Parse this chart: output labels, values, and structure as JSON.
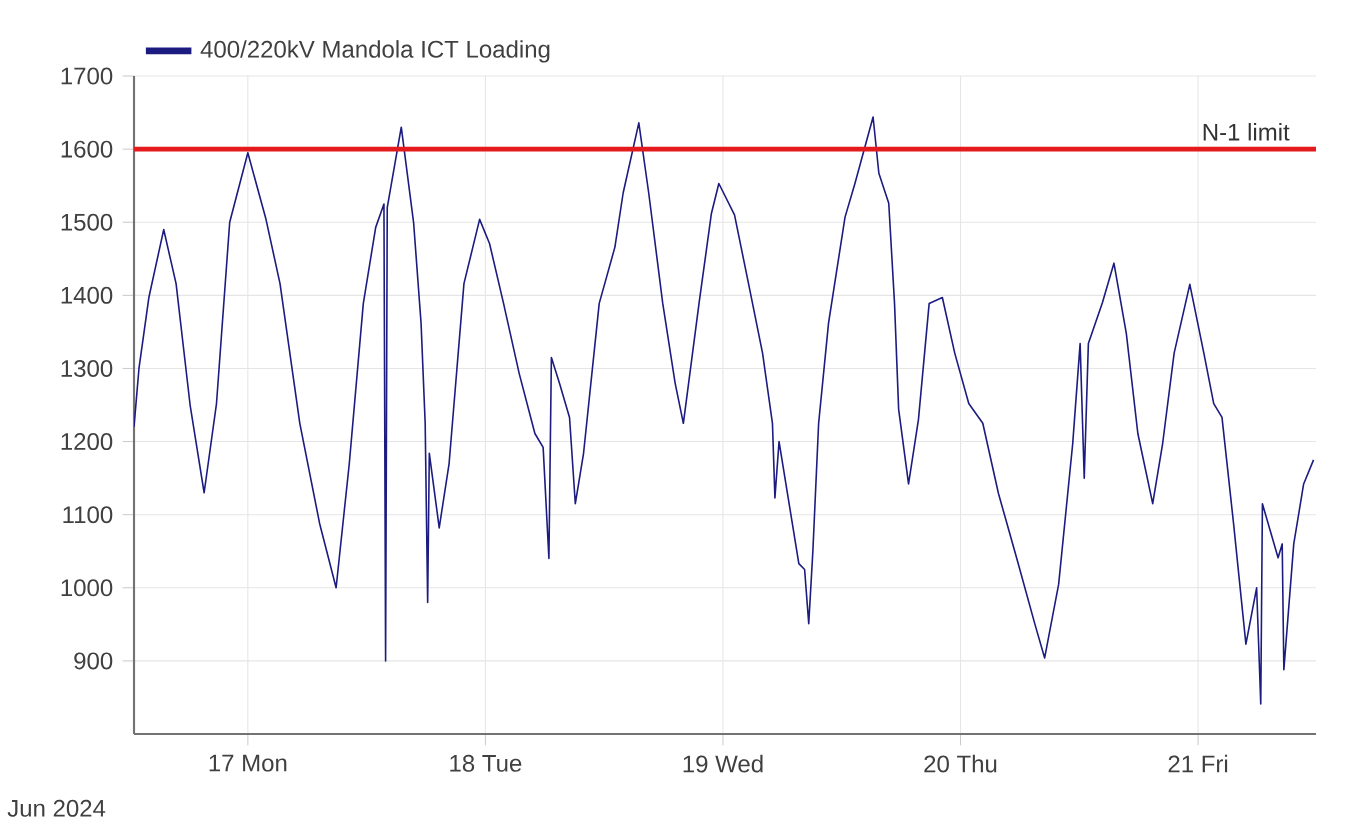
{
  "chart_data": {
    "type": "line",
    "x": [
      "2024-06-16T12:30",
      "2024-06-16T13:00",
      "2024-06-16T14:00",
      "2024-06-16T15:30",
      "2024-06-16T16:45",
      "2024-06-16T18:10",
      "2024-06-16T19:35",
      "2024-06-16T20:50",
      "2024-06-16T22:10",
      "2024-06-17T00:00",
      "2024-06-17T01:50",
      "2024-06-17T03:15",
      "2024-06-17T05:15",
      "2024-06-17T07:15",
      "2024-06-17T08:55",
      "2024-06-17T10:15",
      "2024-06-17T11:40",
      "2024-06-17T12:55",
      "2024-06-17T13:45",
      "2024-06-17T13:55",
      "2024-06-17T14:05",
      "2024-06-17T15:30",
      "2024-06-17T16:45",
      "2024-06-17T17:30",
      "2024-06-17T17:55",
      "2024-06-17T18:10",
      "2024-06-17T18:20",
      "2024-06-17T19:20",
      "2024-06-17T20:20",
      "2024-06-17T21:50",
      "2024-06-17T23:25",
      "2024-06-18T00:25",
      "2024-06-18T01:50",
      "2024-06-18T03:25",
      "2024-06-18T05:00",
      "2024-06-18T05:50",
      "2024-06-18T06:25",
      "2024-06-18T06:40",
      "2024-06-18T07:30",
      "2024-06-18T08:30",
      "2024-06-18T09:05",
      "2024-06-18T09:55",
      "2024-06-18T11:30",
      "2024-06-18T13:05",
      "2024-06-18T13:55",
      "2024-06-18T15:30",
      "2024-06-18T16:30",
      "2024-06-18T17:55",
      "2024-06-18T19:10",
      "2024-06-18T20:00",
      "2024-06-18T21:35",
      "2024-06-18T22:50",
      "2024-06-18T23:35",
      "2024-06-19T01:10",
      "2024-06-19T02:35",
      "2024-06-19T04:00",
      "2024-06-19T05:00",
      "2024-06-19T05:15",
      "2024-06-19T05:40",
      "2024-06-19T07:40",
      "2024-06-19T08:15",
      "2024-06-19T08:40",
      "2024-06-19T09:05",
      "2024-06-19T09:40",
      "2024-06-19T10:40",
      "2024-06-19T12:20",
      "2024-06-19T13:20",
      "2024-06-19T15:10",
      "2024-06-19T15:45",
      "2024-06-19T16:45",
      "2024-06-19T17:20",
      "2024-06-19T17:45",
      "2024-06-19T18:45",
      "2024-06-19T19:45",
      "2024-06-19T20:50",
      "2024-06-19T22:10",
      "2024-06-19T23:25",
      "2024-06-20T00:50",
      "2024-06-20T02:15",
      "2024-06-20T03:50",
      "2024-06-20T05:50",
      "2024-06-20T07:30",
      "2024-06-20T08:30",
      "2024-06-20T09:55",
      "2024-06-20T11:20",
      "2024-06-20T12:05",
      "2024-06-20T12:30",
      "2024-06-20T12:55",
      "2024-06-20T14:20",
      "2024-06-20T15:30",
      "2024-06-20T16:45",
      "2024-06-20T17:55",
      "2024-06-20T19:25",
      "2024-06-20T20:25",
      "2024-06-20T21:35",
      "2024-06-20T23:10",
      "2024-06-21T00:35",
      "2024-06-21T01:35",
      "2024-06-21T02:25",
      "2024-06-21T03:35",
      "2024-06-21T04:50",
      "2024-06-21T05:55",
      "2024-06-21T06:20",
      "2024-06-21T06:30",
      "2024-06-21T08:05",
      "2024-06-21T08:30",
      "2024-06-21T08:40",
      "2024-06-21T09:40",
      "2024-06-21T10:40",
      "2024-06-21T11:40"
    ],
    "series": [
      {
        "name": "400/220kV Mandola ICT Loading",
        "color": "#1c1c80",
        "values": [
          1220,
          1300,
          1397,
          1490,
          1416,
          1250,
          1130,
          1252,
          1500,
          1595,
          1504,
          1416,
          1225,
          1088,
          1000,
          1170,
          1389,
          1493,
          1525,
          900,
          1520,
          1630,
          1499,
          1362,
          1225,
          980,
          1184,
          1082,
          1170,
          1416,
          1504,
          1471,
          1389,
          1293,
          1211,
          1192,
          1040,
          1315,
          1279,
          1233,
          1115,
          1184,
          1389,
          1466,
          1540,
          1636,
          1540,
          1389,
          1280,
          1225,
          1389,
          1512,
          1553,
          1510,
          1416,
          1321,
          1225,
          1123,
          1200,
          1033,
          1025,
          951,
          1050,
          1225,
          1362,
          1507,
          1553,
          1644,
          1567,
          1526,
          1389,
          1244,
          1142,
          1230,
          1389,
          1397,
          1321,
          1252,
          1225,
          1129,
          1033,
          951,
          904,
          1005,
          1197,
          1334,
          1150,
          1334,
          1390,
          1444,
          1348,
          1211,
          1115,
          1197,
          1321,
          1415,
          1321,
          1252,
          1233,
          1088,
          923,
          1000,
          841,
          1115,
          1041,
          1060,
          888,
          1060,
          1142,
          1175
        ]
      }
    ],
    "xlim": [
      "2024-06-16T12:30",
      "2024-06-21T11:55"
    ],
    "xticks": [
      {
        "value": "2024-06-17",
        "label": "17 Mon"
      },
      {
        "value": "2024-06-18",
        "label": "18 Tue"
      },
      {
        "value": "2024-06-19",
        "label": "19 Wed"
      },
      {
        "value": "2024-06-20",
        "label": "20 Thu"
      },
      {
        "value": "2024-06-21",
        "label": "21 Fri"
      }
    ],
    "ylim": [
      800,
      1700
    ],
    "yticks": [
      900,
      1000,
      1100,
      1200,
      1300,
      1400,
      1500,
      1600,
      1700
    ],
    "ref_lines": [
      {
        "axis": "y",
        "value": 1600,
        "label": "N-1 limit",
        "color": "#e41a1c"
      }
    ],
    "annotations": [
      "Jun 2024"
    ],
    "grid": true,
    "legend": "top left",
    "marker": "none",
    "line_style": "solid"
  }
}
